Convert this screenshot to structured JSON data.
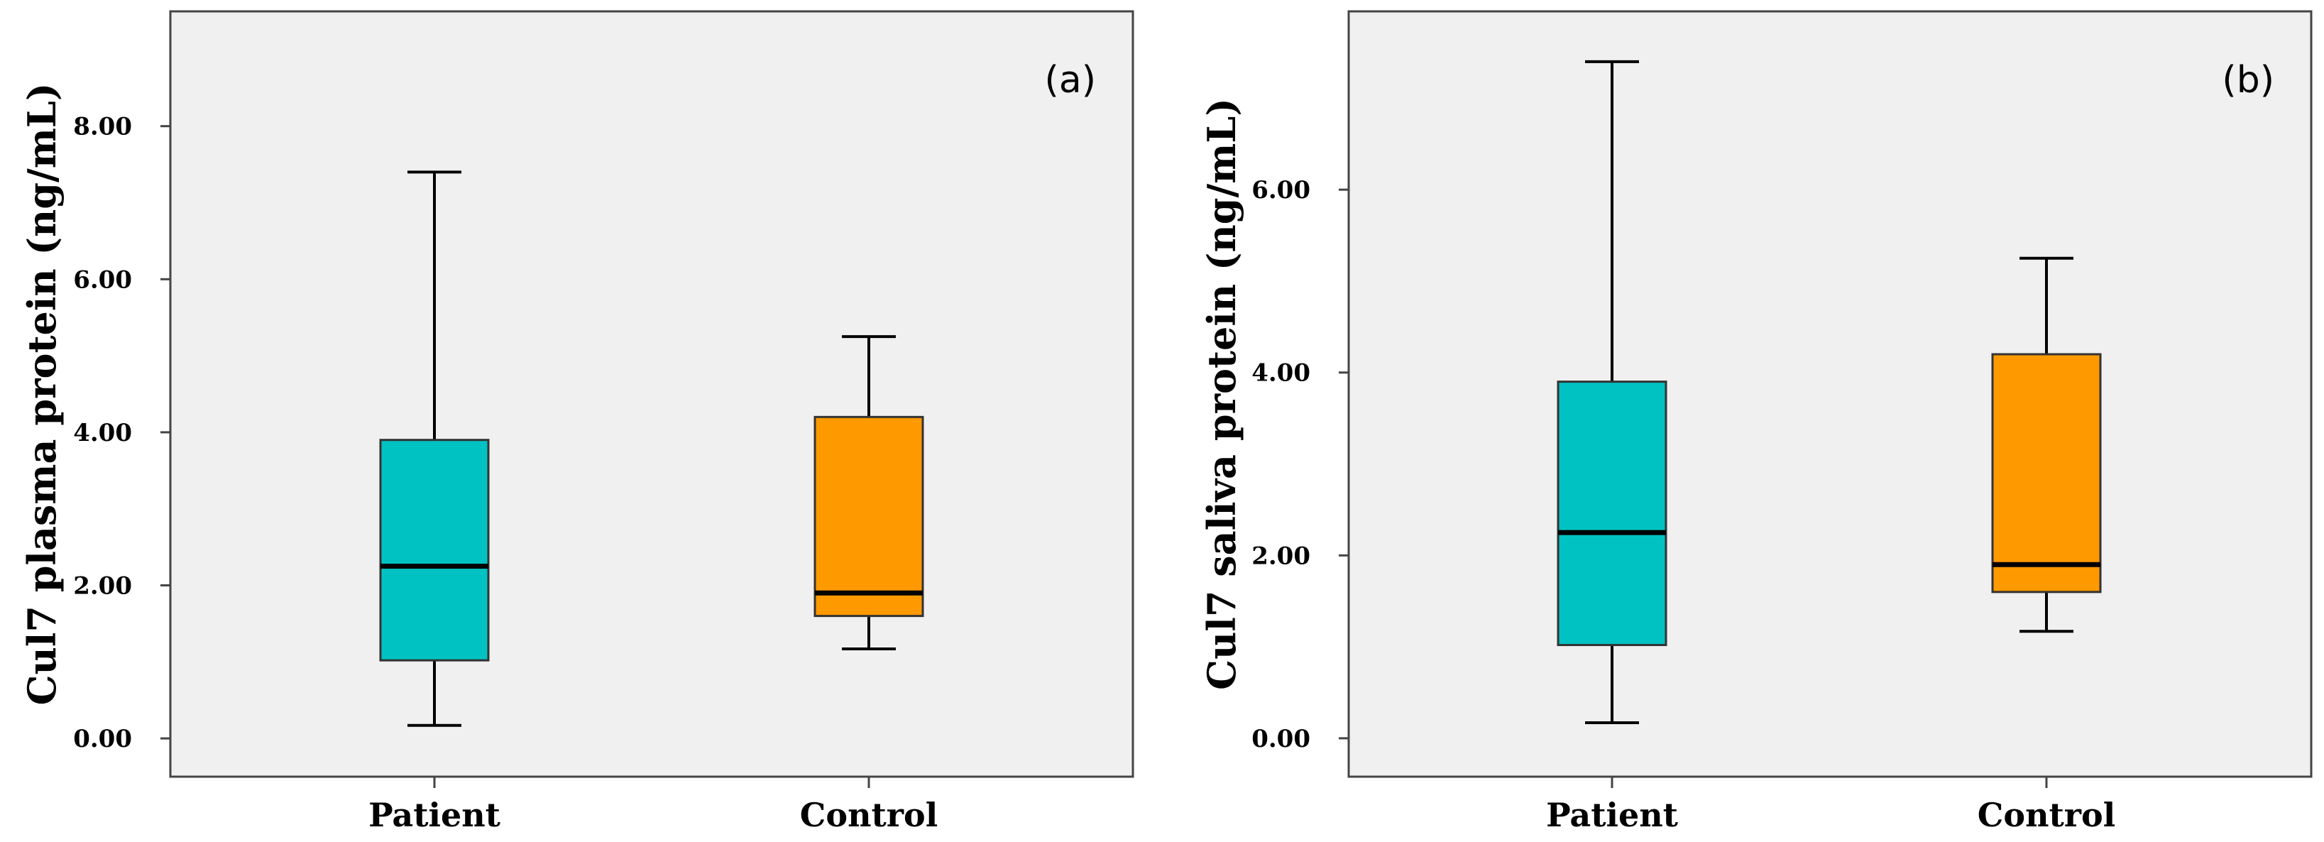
{
  "chart_data": [
    {
      "type": "box",
      "panel_label": "(a)",
      "ylabel": "Cul7 plasma protein (ng/mL)",
      "ylim": [
        -0.5,
        9.5
      ],
      "yticks": [
        0,
        2,
        4,
        6,
        8
      ],
      "ytick_labels": [
        "0.00",
        "2.00",
        "4.00",
        "6.00",
        "8.00"
      ],
      "categories": [
        "Patient",
        "Control"
      ],
      "boxes": [
        {
          "category": "Patient",
          "min": 0.17,
          "q1": 1.02,
          "median": 2.25,
          "q3": 3.9,
          "max": 7.4,
          "color": "#00c2c2"
        },
        {
          "category": "Control",
          "min": 1.17,
          "q1": 1.6,
          "median": 1.9,
          "q3": 4.2,
          "max": 5.25,
          "color": "#ff9900"
        }
      ]
    },
    {
      "type": "box",
      "panel_label": "(b)",
      "ylabel": "Cul7 saliva protein (ng/mL)",
      "ylim": [
        -0.42,
        7.95
      ],
      "yticks": [
        0,
        2,
        4,
        6
      ],
      "ytick_labels": [
        "0.00",
        "2.00",
        "4.00",
        "6.00"
      ],
      "categories": [
        "Patient",
        "Control"
      ],
      "boxes": [
        {
          "category": "Patient",
          "min": 0.17,
          "q1": 1.02,
          "median": 2.25,
          "q3": 3.9,
          "max": 7.4,
          "color": "#00c2c2"
        },
        {
          "category": "Control",
          "min": 1.17,
          "q1": 1.6,
          "median": 1.9,
          "q3": 4.2,
          "max": 5.25,
          "color": "#ff9900"
        }
      ]
    }
  ]
}
